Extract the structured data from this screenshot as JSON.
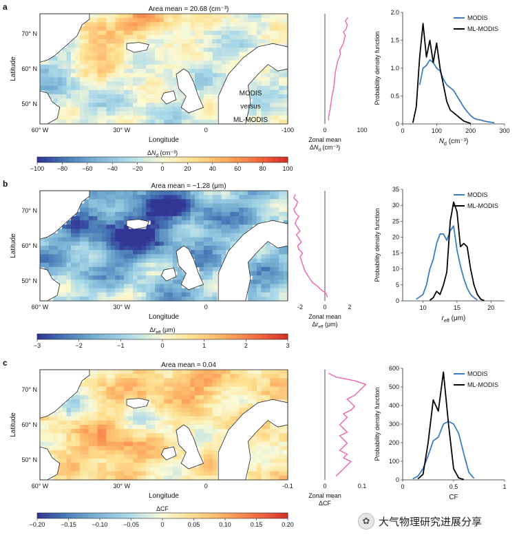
{
  "watermark": "大气物理研究进展分享",
  "watermark_icon": "wechat-icon",
  "map_text": {
    "line1": "MODIS",
    "line2": "versus",
    "line3": "ML-MODIS"
  },
  "colors": {
    "modis": "#3a7cc3",
    "ml_modis": "#000000",
    "zonal": "#ee6bb0"
  },
  "panels": [
    {
      "letter": "a",
      "map": {
        "title": "Area mean = 20.68 (cm⁻³)",
        "xlabel": "Longitude",
        "ylabel": "Latitude",
        "xticks": [
          "60° W",
          "30° W",
          "0"
        ],
        "yticks": [
          "50° N",
          "60° N",
          "70° N"
        ],
        "pattern": "nd"
      },
      "zonal": {
        "label": "Zonal mean",
        "unit_label": "ΔN_d (cm⁻³)",
        "xlim": [
          -100,
          100
        ],
        "ticks": [
          "-100",
          "0",
          "100"
        ],
        "lat": [
          46,
          47,
          48,
          49,
          50,
          51,
          52,
          53,
          54,
          55,
          56,
          57,
          58,
          59,
          60,
          61,
          62,
          63,
          64,
          65,
          66,
          67,
          68,
          69,
          70,
          71,
          72,
          73,
          74
        ],
        "values": [
          10,
          10,
          12,
          14,
          15,
          17,
          18,
          20,
          22,
          24,
          25,
          26,
          27,
          28,
          30,
          32,
          34,
          38,
          42,
          40,
          45,
          50,
          52,
          55,
          50,
          58,
          60,
          55,
          62
        ]
      },
      "colorbar": {
        "label": "ΔN_d (cm⁻³)",
        "ticks": [
          "-100",
          "-80",
          "-60",
          "-40",
          "-20",
          "0",
          "20",
          "40",
          "60",
          "80",
          "100"
        ]
      },
      "chart_data": {
        "type": "line",
        "xlabel": "N_d (cm⁻³)",
        "ylabel": "Probability density function",
        "xlim": [
          0,
          300
        ],
        "ylim": [
          0,
          2
        ],
        "xticks": [
          "0",
          "100",
          "200",
          "300"
        ],
        "yticks": [
          "0",
          "0.5",
          "1.0",
          "1.5",
          "2.0"
        ],
        "legend": "top-right",
        "series": [
          {
            "name": "MODIS",
            "x": [
              50,
              60,
              70,
              80,
              90,
              100,
              110,
              120,
              130,
              140,
              150,
              160,
              170,
              180,
              190,
              200,
              210,
              220,
              230,
              240,
              250,
              260,
              270
            ],
            "values": [
              0.7,
              1.0,
              1.05,
              1.15,
              1.1,
              1.0,
              0.95,
              0.8,
              0.7,
              0.65,
              0.6,
              0.5,
              0.4,
              0.3,
              0.22,
              0.15,
              0.1,
              0.08,
              0.07,
              0.05,
              0.04,
              0.03,
              0.02
            ]
          },
          {
            "name": "ML-MODIS",
            "x": [
              30,
              40,
              50,
              60,
              70,
              80,
              90,
              100,
              110,
              120,
              130,
              140,
              150,
              160,
              170,
              180,
              190,
              200
            ],
            "values": [
              0.02,
              0.3,
              1.2,
              1.8,
              1.2,
              1.5,
              1.1,
              1.45,
              1.0,
              0.7,
              0.4,
              0.25,
              0.2,
              0.15,
              0.1,
              0.05,
              0.03,
              0.01
            ]
          }
        ]
      }
    },
    {
      "letter": "b",
      "map": {
        "title": "Area mean = −1.28 (μm)",
        "xlabel": "Longitude",
        "ylabel": "Latitude",
        "xticks": [
          "60° W",
          "30° W",
          "0"
        ],
        "yticks": [
          "50° N",
          "60° N",
          "70° N"
        ],
        "pattern": "reff"
      },
      "zonal": {
        "label": "Zonal mean",
        "unit_label": "Δr_eff (μm)",
        "xlim": [
          -3,
          3
        ],
        "ticks": [
          "-2",
          "0",
          "2"
        ],
        "lat": [
          46,
          47,
          48,
          49,
          50,
          51,
          52,
          53,
          54,
          55,
          56,
          57,
          58,
          59,
          60,
          61,
          62,
          63,
          64,
          65,
          66,
          67,
          68,
          69,
          70,
          71,
          72,
          73,
          74
        ],
        "values": [
          0.2,
          0.1,
          -0.3,
          -0.6,
          -1.0,
          -1.2,
          -1.4,
          -1.6,
          -1.7,
          -1.8,
          -1.9,
          -2.0,
          -1.8,
          -2.1,
          -2.2,
          -1.9,
          -2.1,
          -2.3,
          -2.0,
          -2.2,
          -2.4,
          -2.3,
          -2.1,
          -2.4,
          -2.5,
          -2.3,
          -2.2,
          -2.5,
          -2.4
        ]
      },
      "colorbar": {
        "label": "Δr_eff (μm)",
        "ticks": [
          "-3",
          "-2",
          "-1",
          "0",
          "1",
          "2",
          "3"
        ]
      },
      "chart_data": {
        "type": "line",
        "xlabel": "r_eff (μm)",
        "ylabel": "Probability density function",
        "xlim": [
          7,
          22
        ],
        "ylim": [
          0,
          35
        ],
        "xticks": [
          "10",
          "15",
          "20"
        ],
        "yticks": [
          "0",
          "5",
          "10",
          "15",
          "20",
          "25",
          "30",
          "35"
        ],
        "legend": "top-right",
        "series": [
          {
            "name": "MODIS",
            "x": [
              9,
              10,
              10.5,
              11,
              11.5,
              12,
              12.5,
              13,
              13.5,
              14,
              14.5,
              15,
              15.5,
              16,
              16.5,
              17,
              17.5,
              18
            ],
            "values": [
              0.5,
              2,
              5,
              10,
              13,
              18,
              21,
              21,
              19,
              22,
              23.5,
              16,
              11,
              7,
              4,
              2,
              1,
              0.3
            ]
          },
          {
            "name": "ML-MODIS",
            "x": [
              11,
              11.5,
              12,
              12.5,
              13,
              13.5,
              14,
              14.5,
              15,
              15.5,
              16,
              16.5,
              17,
              17.5,
              18,
              18.5,
              19
            ],
            "values": [
              0.2,
              1,
              3,
              2,
              5,
              9,
              25,
              31,
              28,
              17,
              18,
              17,
              10,
              5,
              2,
              0.5,
              0.1
            ]
          }
        ]
      }
    },
    {
      "letter": "c",
      "map": {
        "title": "Area mean = 0.04",
        "xlabel": "Longitude",
        "ylabel": "Latitude",
        "xticks": [
          "60° W",
          "30° W",
          "0"
        ],
        "yticks": [
          "50° N",
          "60° N",
          "70° N"
        ],
        "pattern": "cf"
      },
      "zonal": {
        "label": "Zonal mean",
        "unit_label": "ΔCF",
        "xlim": [
          -0.1,
          0.1
        ],
        "ticks": [
          "-0.1",
          "0",
          "0.1"
        ],
        "lat": [
          46,
          47,
          48,
          49,
          50,
          51,
          52,
          53,
          54,
          55,
          56,
          57,
          58,
          59,
          60,
          61,
          62,
          63,
          64,
          65,
          66,
          67,
          68,
          69,
          70,
          71,
          72,
          73,
          74
        ],
        "values": [
          0.03,
          0.04,
          0.05,
          0.06,
          0.07,
          0.05,
          0.06,
          0.04,
          0.05,
          0.06,
          0.05,
          0.04,
          0.06,
          0.05,
          0.04,
          0.05,
          0.06,
          0.05,
          0.07,
          0.08,
          0.07,
          0.06,
          0.08,
          0.09,
          0.1,
          0.11,
          0.08,
          0.03,
          0.01
        ]
      },
      "colorbar": {
        "label": "ΔCF",
        "ticks": [
          "-0.20",
          "-0.15",
          "-0.10",
          "-0.05",
          "0",
          "0.05",
          "0.10",
          "0.15",
          "0.20"
        ]
      },
      "chart_data": {
        "type": "line",
        "xlabel": "CF",
        "ylabel": "Probability density function",
        "xlim": [
          0,
          1
        ],
        "ylim": [
          0,
          600
        ],
        "xticks": [
          "0",
          "0.5",
          "1"
        ],
        "yticks": [
          "0",
          "100",
          "200",
          "300",
          "400",
          "500",
          "600"
        ],
        "legend": "top-right",
        "series": [
          {
            "name": "MODIS",
            "x": [
              0.1,
              0.15,
              0.2,
              0.25,
              0.3,
              0.35,
              0.4,
              0.45,
              0.5,
              0.55,
              0.6,
              0.65,
              0.7
            ],
            "values": [
              5,
              20,
              60,
              130,
              210,
              230,
              300,
              315,
              300,
              250,
              140,
              40,
              8
            ]
          },
          {
            "name": "ML-MODIS",
            "x": [
              0.15,
              0.2,
              0.25,
              0.3,
              0.35,
              0.4,
              0.45,
              0.5,
              0.55,
              0.6
            ],
            "values": [
              5,
              30,
              200,
              430,
              370,
              580,
              300,
              60,
              10,
              2
            ]
          }
        ]
      }
    }
  ]
}
